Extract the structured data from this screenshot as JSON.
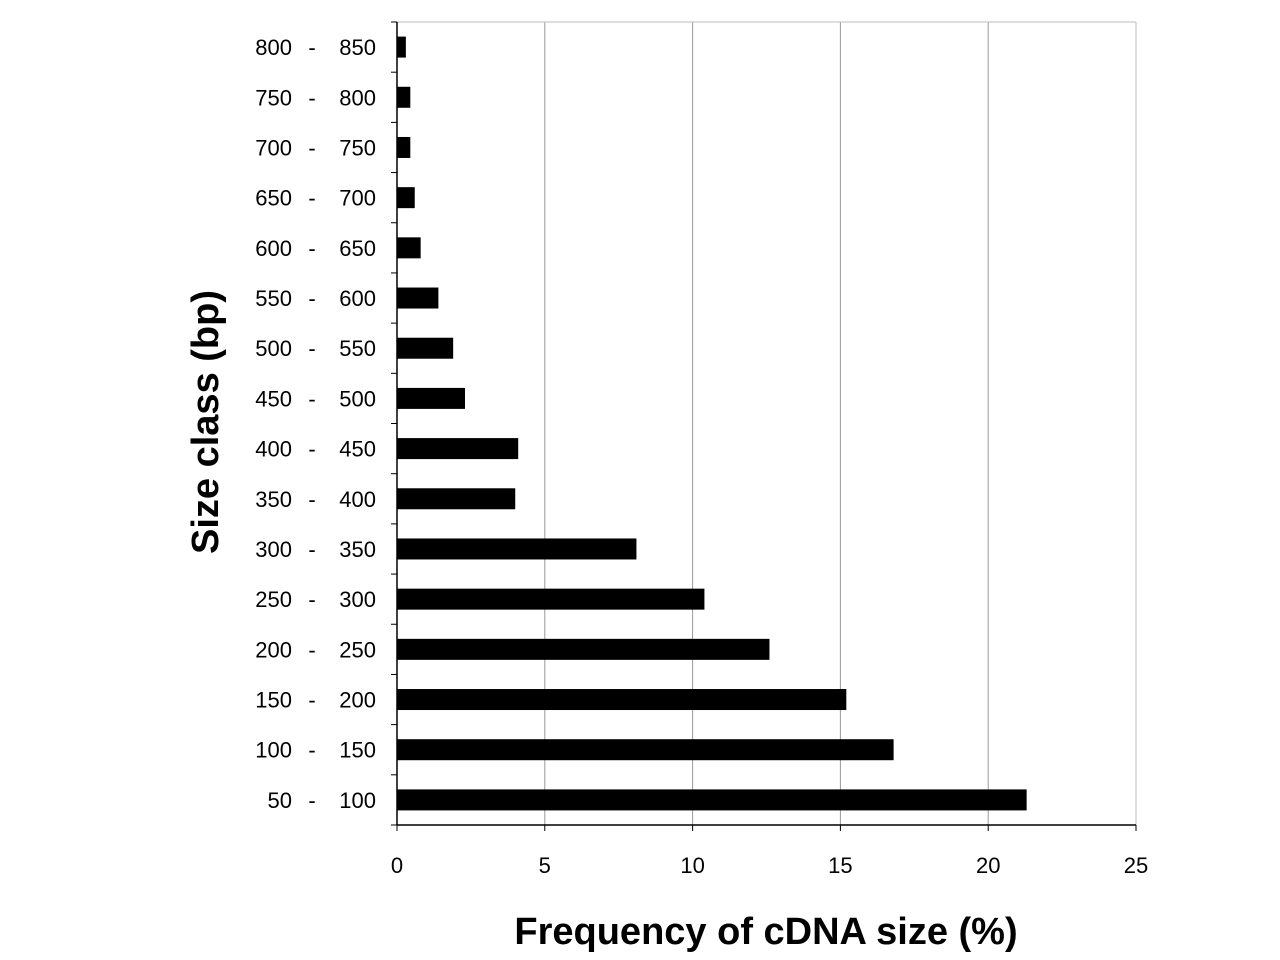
{
  "chart_data": {
    "type": "bar",
    "orientation": "horizontal",
    "xlabel": "Frequency of cDNA size (%)",
    "ylabel": "Size class (bp)",
    "xlim": [
      0,
      25
    ],
    "xticks": [
      0,
      5,
      10,
      15,
      20,
      25
    ],
    "grid": "vertical gridlines at x ticks",
    "legend": "none",
    "categories": [
      {
        "lo": "50",
        "hi": "100"
      },
      {
        "lo": "100",
        "hi": "150"
      },
      {
        "lo": "150",
        "hi": "200"
      },
      {
        "lo": "200",
        "hi": "250"
      },
      {
        "lo": "250",
        "hi": "300"
      },
      {
        "lo": "300",
        "hi": "350"
      },
      {
        "lo": "350",
        "hi": "400"
      },
      {
        "lo": "400",
        "hi": "450"
      },
      {
        "lo": "450",
        "hi": "500"
      },
      {
        "lo": "500",
        "hi": "550"
      },
      {
        "lo": "550",
        "hi": "600"
      },
      {
        "lo": "600",
        "hi": "650"
      },
      {
        "lo": "650",
        "hi": "700"
      },
      {
        "lo": "700",
        "hi": "750"
      },
      {
        "lo": "750",
        "hi": "800"
      },
      {
        "lo": "800",
        "hi": "850"
      }
    ],
    "values": [
      21.3,
      16.8,
      15.2,
      12.6,
      10.4,
      8.1,
      4.0,
      4.1,
      2.3,
      1.9,
      1.4,
      0.8,
      0.6,
      0.45,
      0.45,
      0.3
    ],
    "colors": {
      "bar": "#000000",
      "grid": "#999999",
      "axis": "#000000"
    }
  }
}
